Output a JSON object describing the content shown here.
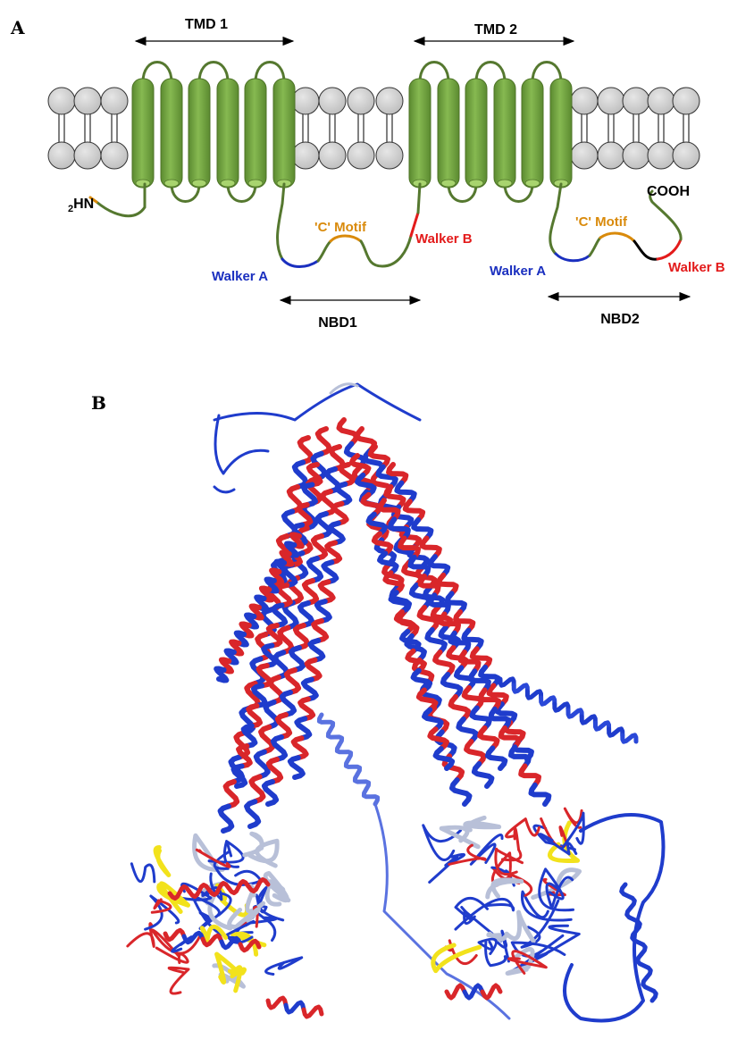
{
  "panel_a": {
    "letter": "A",
    "tmd1": "TMD 1",
    "tmd2": "TMD 2",
    "n_terminus_sub": "2",
    "n_terminus": "HN",
    "c_terminus": "COOH",
    "nbd1": {
      "label": "NBD1",
      "walker_a": "Walker A",
      "c_motif": "'C' Motif",
      "walker_b": "Walker B"
    },
    "nbd2": {
      "label": "NBD2",
      "walker_a": "Walker A",
      "c_motif": "'C' Motif",
      "walker_b": "Walker B"
    }
  },
  "panel_b": {
    "letter": "B"
  },
  "colors": {
    "helix_green": "#6a9a3c",
    "helix_green_light": "#8cbf52",
    "loop_green": "#55782f",
    "lipid_gray": "#cccccc",
    "walker_a_blue": "#1a2fbf",
    "c_motif_orange": "#d98a0b",
    "walker_b_red": "#e31b1b",
    "loop_black": "#000000",
    "ribbon_red": "#d9262a",
    "ribbon_blue": "#1f3ccc",
    "ribbon_yellow": "#f2e21c"
  }
}
